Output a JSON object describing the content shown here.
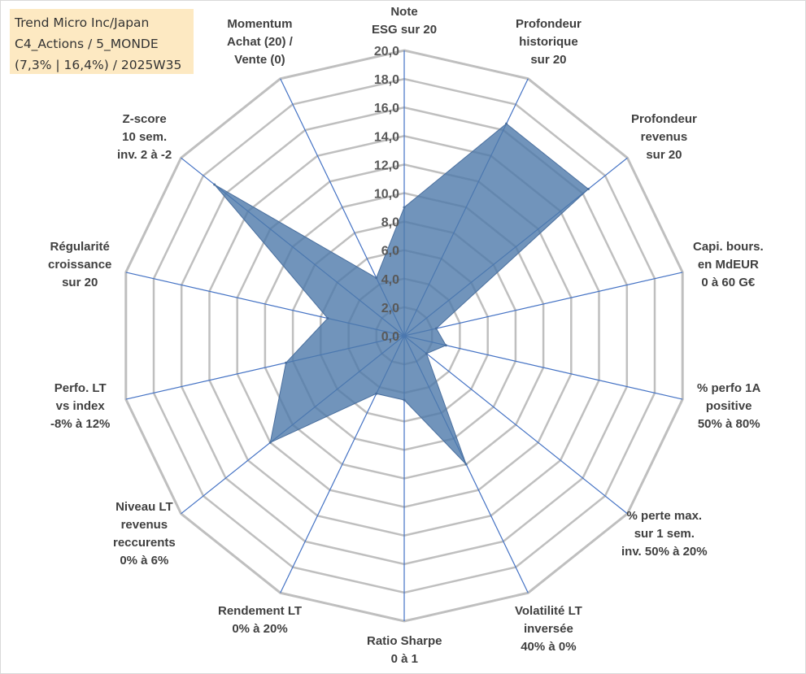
{
  "info": {
    "line1": "Trend Micro Inc/Japan",
    "line2": "C4_Actions / 5_MONDE",
    "line3": "(7,3% | 16,4%) / 2025W35"
  },
  "chart_data": {
    "type": "radar",
    "rmin": 0,
    "rmax": 20,
    "tick_step": 2,
    "ticks": [
      "0,0",
      "2,0",
      "4,0",
      "6,0",
      "8,0",
      "10,0",
      "12,0",
      "14,0",
      "16,0",
      "18,0",
      "20,0"
    ],
    "grid": true,
    "colors": {
      "fill": "#4e79aa",
      "fill_opacity": 0.8,
      "axis": "#4472c4",
      "grid": "#bfbfbf"
    },
    "categories": [
      [
        "Note",
        "ESG sur 20"
      ],
      [
        "Profondeur",
        "historique",
        "sur 20"
      ],
      [
        "Profondeur",
        "revenus",
        "sur 20"
      ],
      [
        "Capi. bours.",
        "en MdEUR",
        "0 à 60 G€"
      ],
      [
        "% perfo 1A",
        "positive",
        "50% à 80%"
      ],
      [
        "% perte max.",
        "sur 1 sem.",
        "inv. 50% à 20%"
      ],
      [
        "Volatilité LT",
        "inversée",
        "40% à 0%"
      ],
      [
        "Ratio Sharpe",
        "0 à 1"
      ],
      [
        "Rendement LT",
        "0% à 20%"
      ],
      [
        "Niveau LT",
        "revenus",
        "reccurents",
        "0% à 6%"
      ],
      [
        "Perfo. LT",
        "vs index",
        "-8% à 12%"
      ],
      [
        "Régularité",
        "croissance",
        "sur 20"
      ],
      [
        "Z-score",
        "10 sem.",
        "inv. 2 à -2"
      ],
      [
        "Momentum",
        "Achat (20) /",
        "Vente (0)"
      ]
    ],
    "values": [
      9.0,
      16.5,
      16.5,
      2.3,
      3.0,
      2.0,
      10.0,
      4.5,
      4.5,
      12.0,
      8.5,
      5.5,
      17.0,
      4.5
    ]
  }
}
